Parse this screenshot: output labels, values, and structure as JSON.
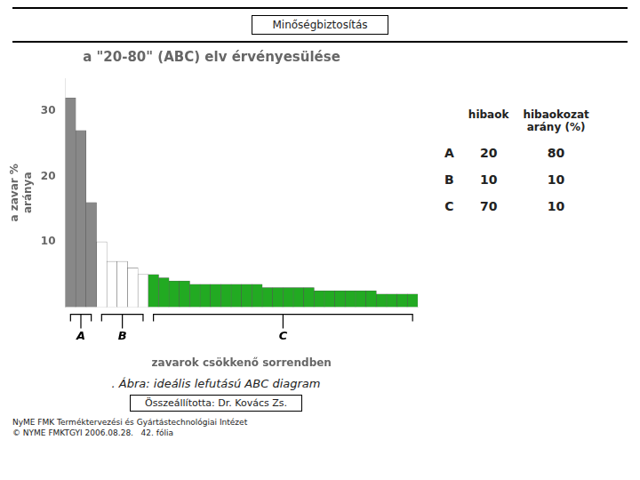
{
  "chart_data": {
    "type": "bar",
    "title": "a \"20-80\" (ABC) elv érvényesülése",
    "xlabel": "zavarok csökkenő sorrendben",
    "ylabel": "a zavar %\naránya",
    "categories": [
      null,
      null,
      null,
      null,
      null,
      null,
      null,
      null,
      null,
      null,
      null,
      null,
      null,
      null,
      null,
      null,
      null,
      null,
      null,
      null,
      null,
      null,
      null,
      null,
      null,
      null,
      null,
      null,
      null,
      null,
      null,
      null,
      null,
      null
    ],
    "series": [
      {
        "name": "A",
        "color": "#888888",
        "values": [
          32,
          27,
          16,
          null,
          null,
          null,
          null,
          null,
          null,
          null,
          null,
          null,
          null,
          null,
          null,
          null,
          null,
          null,
          null,
          null,
          null,
          null,
          null,
          null,
          null,
          null,
          null,
          null,
          null,
          null,
          null,
          null,
          null,
          null
        ]
      },
      {
        "name": "B",
        "color": "#ffffff",
        "values": [
          null,
          null,
          null,
          10,
          7,
          7,
          6,
          5,
          null,
          null,
          null,
          null,
          null,
          null,
          null,
          null,
          null,
          null,
          null,
          null,
          null,
          null,
          null,
          null,
          null,
          null,
          null,
          null,
          null,
          null,
          null,
          null,
          null,
          null
        ]
      },
      {
        "name": "C",
        "color": "#22aa22",
        "values": [
          null,
          null,
          null,
          null,
          null,
          null,
          null,
          null,
          5,
          4.5,
          4,
          4,
          3.5,
          3.5,
          3.5,
          3.5,
          3.5,
          3.5,
          3.5,
          3,
          3,
          3,
          3,
          3,
          2.5,
          2.5,
          2.5,
          2.5,
          2.5,
          2.5,
          2,
          2,
          2,
          2
        ]
      }
    ],
    "ylim": [
      0,
      35
    ],
    "yticks": [
      10,
      20,
      30
    ],
    "grid": false,
    "tick_labels": "y",
    "table": {
      "columns": [
        "hibaok",
        "hibaokozat\narány (%)"
      ],
      "rows": [
        {
          "label": "A",
          "values": [
            20,
            80
          ]
        },
        {
          "label": "B",
          "values": [
            10,
            10
          ]
        },
        {
          "label": "C",
          "values": [
            70,
            10
          ]
        }
      ]
    },
    "annotations": {
      "header": "Minőségbiztosítás",
      "caption": ". Ábra: ideális lefutású ABC diagram",
      "author": "Összeállította: Dr. Kovács Zs.",
      "footer": [
        "NyME FMK Terméktervezési és Gyártástechnológiai Intézet",
        "© NYME FMKTGYI 2006.08.28.   42. fólia"
      ]
    }
  }
}
